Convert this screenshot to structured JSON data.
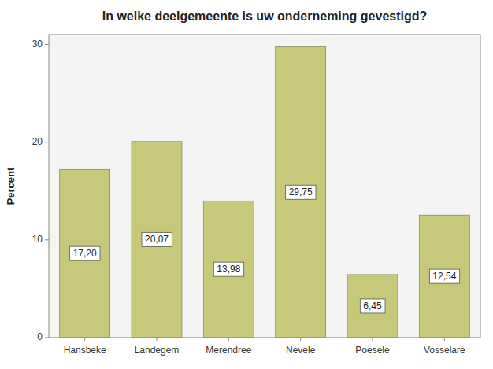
{
  "chart_data": {
    "type": "bar",
    "title": "In welke deelgemeente is uw onderneming gevestigd?",
    "categories": [
      "Hansbeke",
      "Landegem",
      "Merendree",
      "Nevele",
      "Poesele",
      "Vosselare"
    ],
    "values": [
      17.2,
      20.07,
      13.98,
      29.75,
      6.45,
      12.54
    ],
    "value_labels": [
      "17,20",
      "20,07",
      "13,98",
      "29,75",
      "6,45",
      "12,54"
    ],
    "data_labels": true,
    "color": "#C8C87A",
    "ylabel": "Percent",
    "ylim": [
      0,
      31
    ],
    "yticks": [
      0,
      10,
      20,
      30
    ],
    "grid": false
  }
}
